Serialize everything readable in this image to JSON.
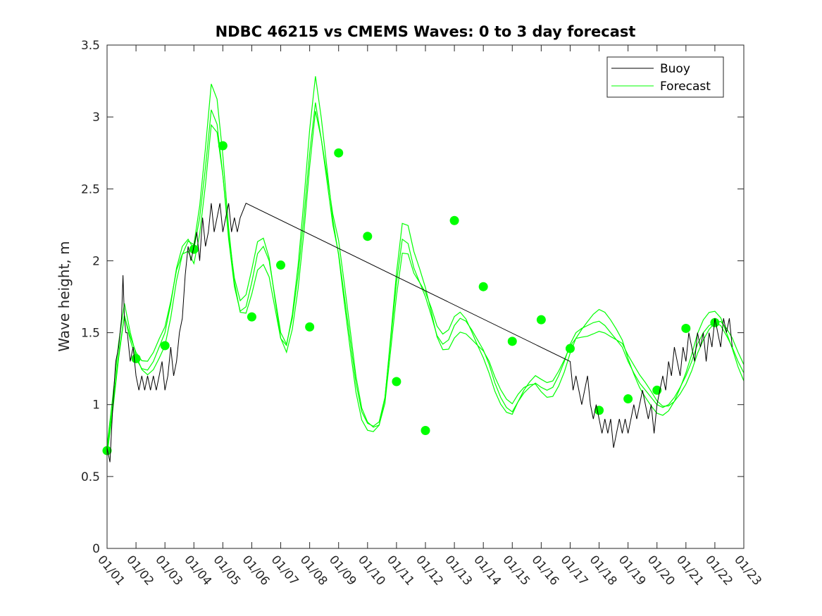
{
  "chart_data": {
    "type": "line",
    "title": "NDBC 46215 vs CMEMS Waves: 0 to 3 day forecast",
    "xlabel": "",
    "ylabel": "Wave height, m",
    "xlim": [
      0,
      22
    ],
    "ylim": [
      0,
      3.5
    ],
    "x_tick_values": [
      0,
      1,
      2,
      3,
      4,
      5,
      6,
      7,
      8,
      9,
      10,
      11,
      12,
      13,
      14,
      15,
      16,
      17,
      18,
      19,
      20,
      21,
      22
    ],
    "x_tick_labels": [
      "01/01",
      "01/02",
      "01/03",
      "01/04",
      "01/05",
      "01/06",
      "01/07",
      "01/08",
      "01/09",
      "01/10",
      "01/11",
      "01/12",
      "01/13",
      "01/14",
      "01/15",
      "01/16",
      "01/17",
      "01/18",
      "01/19",
      "01/20",
      "01/21",
      "01/22",
      "01/23"
    ],
    "y_tick_values": [
      0,
      0.5,
      1,
      1.5,
      2,
      2.5,
      3,
      3.5
    ],
    "y_tick_labels": [
      "0",
      "0.5",
      "1",
      "1.5",
      "2",
      "2.5",
      "3",
      "3.5"
    ],
    "legend": {
      "placement": "top-right",
      "entries": [
        "Buoy",
        "Forecast"
      ]
    },
    "colors": {
      "buoy": "#000000",
      "forecast": "#00ff00",
      "axes": "#262626"
    },
    "series": [
      {
        "name": "Buoy",
        "x": [
          0,
          0.1,
          0.2,
          0.3,
          0.4,
          0.5,
          0.55,
          0.6,
          0.65,
          0.7,
          0.8,
          0.9,
          1.0,
          1.1,
          1.2,
          1.3,
          1.4,
          1.5,
          1.6,
          1.7,
          1.8,
          1.9,
          2.0,
          2.1,
          2.2,
          2.3,
          2.4,
          2.5,
          2.6,
          2.7,
          2.8,
          2.9,
          3.0,
          3.1,
          3.2,
          3.3,
          3.4,
          3.5,
          3.6,
          3.7,
          3.8,
          3.9,
          4.0,
          4.1,
          4.2,
          4.3,
          4.4,
          4.5,
          4.6,
          4.8,
          16.0,
          16.1,
          16.2,
          16.3,
          16.4,
          16.5,
          16.6,
          16.7,
          16.8,
          16.9,
          17.0,
          17.1,
          17.2,
          17.3,
          17.4,
          17.5,
          17.6,
          17.7,
          17.8,
          17.9,
          18.0,
          18.1,
          18.2,
          18.3,
          18.4,
          18.5,
          18.6,
          18.7,
          18.8,
          18.9,
          19.0,
          19.1,
          19.2,
          19.3,
          19.4,
          19.5,
          19.6,
          19.7,
          19.8,
          19.9,
          20.0,
          20.1,
          20.2,
          20.3,
          20.4,
          20.5,
          20.6,
          20.7,
          20.8,
          20.9,
          21.0,
          21.1,
          21.2,
          21.3,
          21.4,
          21.5,
          21.6
        ],
        "values": [
          0.7,
          0.6,
          1.0,
          1.3,
          1.4,
          1.6,
          1.9,
          1.6,
          1.5,
          1.5,
          1.3,
          1.4,
          1.2,
          1.1,
          1.2,
          1.1,
          1.2,
          1.1,
          1.2,
          1.1,
          1.2,
          1.3,
          1.1,
          1.2,
          1.4,
          1.2,
          1.3,
          1.5,
          1.6,
          1.9,
          2.1,
          2.0,
          2.1,
          2.2,
          2.0,
          2.3,
          2.1,
          2.2,
          2.4,
          2.2,
          2.3,
          2.4,
          2.2,
          2.3,
          2.4,
          2.2,
          2.3,
          2.2,
          2.3,
          2.4,
          1.3,
          1.1,
          1.2,
          1.1,
          1.0,
          1.1,
          1.2,
          1.0,
          0.9,
          1.0,
          0.9,
          0.8,
          0.9,
          0.8,
          0.9,
          0.7,
          0.8,
          0.9,
          0.8,
          0.9,
          0.8,
          0.9,
          1.0,
          0.9,
          1.0,
          1.1,
          1.0,
          0.9,
          1.0,
          0.8,
          1.0,
          1.1,
          1.2,
          1.1,
          1.3,
          1.2,
          1.4,
          1.3,
          1.2,
          1.4,
          1.3,
          1.5,
          1.4,
          1.3,
          1.5,
          1.4,
          1.5,
          1.3,
          1.5,
          1.4,
          1.6,
          1.5,
          1.4,
          1.6,
          1.5,
          1.6,
          1.4
        ]
      },
      {
        "name": "Forecast",
        "x": [
          0,
          0.2,
          0.4,
          0.6,
          0.8,
          1.0,
          1.2,
          1.4,
          1.6,
          1.8,
          2.0,
          2.2,
          2.4,
          2.6,
          2.8,
          3.0,
          3.2,
          3.4,
          3.6,
          3.8,
          4.0,
          4.2,
          4.4,
          4.6,
          4.8,
          5.0,
          5.2,
          5.4,
          5.6,
          5.8,
          6.0,
          6.2,
          6.4,
          6.6,
          6.8,
          7.0,
          7.2,
          7.4,
          7.6,
          7.8,
          8.0,
          8.2,
          8.4,
          8.6,
          8.8,
          9.0,
          9.2,
          9.4,
          9.6,
          9.8,
          10.0,
          10.2,
          10.4,
          10.6,
          10.8,
          11.0,
          11.2,
          11.4,
          11.6,
          11.8,
          12.0,
          12.2,
          12.4,
          12.6,
          12.8,
          13.0,
          13.2,
          13.4,
          13.6,
          13.8,
          14.0,
          14.2,
          14.4,
          14.6,
          14.8,
          15.0,
          15.2,
          15.4,
          15.6,
          15.8,
          16.0,
          16.2,
          16.4,
          16.6,
          16.8,
          17.0,
          17.2,
          17.4,
          17.6,
          17.8,
          18.0,
          18.2,
          18.4,
          18.6,
          18.8,
          19.0,
          19.2,
          19.4,
          19.6,
          19.8,
          20.0,
          20.2,
          20.4,
          20.6,
          20.8,
          21.0,
          21.2,
          21.4,
          21.6,
          21.8,
          22.0
        ],
        "values": [
          0.68,
          1.0,
          1.35,
          1.62,
          1.45,
          1.32,
          1.25,
          1.24,
          1.3,
          1.4,
          1.5,
          1.7,
          1.95,
          2.1,
          2.15,
          2.08,
          2.3,
          2.65,
          3.05,
          2.95,
          2.6,
          2.15,
          1.82,
          1.65,
          1.68,
          1.85,
          2.05,
          2.1,
          2.0,
          1.75,
          1.5,
          1.42,
          1.6,
          1.9,
          2.3,
          2.75,
          3.1,
          2.85,
          2.55,
          2.25,
          2.05,
          1.75,
          1.45,
          1.15,
          0.95,
          0.87,
          0.85,
          0.88,
          1.05,
          1.45,
          1.85,
          2.15,
          2.12,
          1.95,
          1.85,
          1.75,
          1.62,
          1.48,
          1.42,
          1.45,
          1.55,
          1.6,
          1.58,
          1.52,
          1.45,
          1.38,
          1.28,
          1.15,
          1.05,
          0.98,
          0.95,
          1.02,
          1.08,
          1.12,
          1.15,
          1.12,
          1.1,
          1.12,
          1.2,
          1.3,
          1.42,
          1.5,
          1.53,
          1.55,
          1.57,
          1.58,
          1.55,
          1.5,
          1.45,
          1.4,
          1.3,
          1.22,
          1.15,
          1.1,
          1.05,
          1.0,
          0.98,
          1.0,
          1.05,
          1.12,
          1.2,
          1.3,
          1.42,
          1.5,
          1.55,
          1.57,
          1.55,
          1.48,
          1.4,
          1.3,
          1.22
        ]
      }
    ],
    "forecast_markers": {
      "x": [
        0,
        1,
        2,
        3,
        4,
        5,
        6,
        7,
        8,
        9,
        10,
        11,
        12,
        13,
        14,
        15,
        16,
        17,
        18,
        19,
        20,
        21
      ],
      "values": [
        0.68,
        1.32,
        1.41,
        2.08,
        2.8,
        1.61,
        1.97,
        1.54,
        2.75,
        2.17,
        1.16,
        0.82,
        2.28,
        1.82,
        1.44,
        1.59,
        1.39,
        0.96,
        1.04,
        1.1,
        1.53,
        1.57
      ]
    }
  }
}
